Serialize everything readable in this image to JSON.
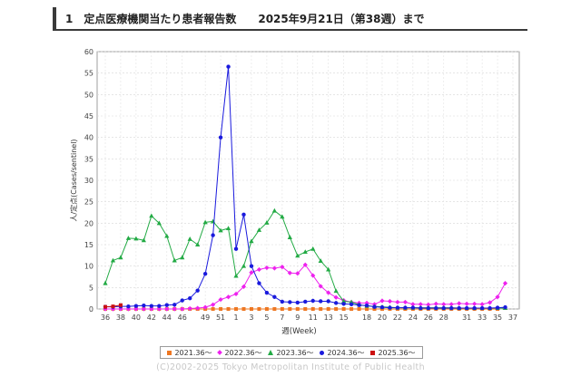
{
  "header": {
    "text": "1　定点医療機関当たり患者報告数　　2025年9月21日（第38週）まで"
  },
  "copyright": "(C)2002-2025 Tokyo Metropolitan Institute of Public Health",
  "chart_data": {
    "type": "line",
    "title": "",
    "xlabel": "週(Week)",
    "ylabel": "人/定点(Cases/sentinel)",
    "ylim": [
      0,
      60
    ],
    "yticks": [
      0,
      5,
      10,
      15,
      20,
      25,
      30,
      35,
      40,
      45,
      50,
      55,
      60
    ],
    "grid": true,
    "legend_position": "bottom",
    "x_tick_labels": [
      "36",
      "38",
      "40",
      "42",
      "44",
      "46",
      "49",
      "51",
      "1",
      "3",
      "5",
      "7",
      "9",
      "11",
      "13",
      "15",
      "18",
      "20",
      "22",
      "24",
      "26",
      "28",
      "31",
      "33",
      "35",
      "37"
    ],
    "weeks": [
      36,
      37,
      38,
      39,
      40,
      41,
      42,
      43,
      44,
      45,
      46,
      47,
      48,
      49,
      50,
      51,
      52,
      1,
      2,
      3,
      4,
      5,
      6,
      7,
      8,
      9,
      10,
      11,
      12,
      13,
      14,
      15,
      16,
      17,
      18,
      19,
      20,
      21,
      22,
      23,
      24,
      25,
      26,
      27,
      28,
      29,
      30,
      31,
      32,
      33,
      34,
      35,
      36,
      37
    ],
    "series": [
      {
        "name": "2021.36～",
        "color": "#ee7722",
        "marker": "square",
        "values": [
          0,
          0,
          0,
          0,
          0,
          0,
          0,
          0,
          0,
          0,
          0,
          0,
          0,
          0,
          0,
          0,
          0,
          0,
          0,
          0,
          0,
          0,
          0,
          0,
          0,
          0,
          0,
          0,
          0,
          0,
          0,
          0,
          0,
          0,
          0,
          0,
          0,
          0,
          0,
          0,
          0,
          0,
          0,
          0,
          0,
          0,
          0,
          0,
          0,
          0,
          0,
          0,
          null,
          null
        ]
      },
      {
        "name": "2022.36～",
        "color": "#ee22ee",
        "marker": "diamond",
        "values": [
          0,
          0,
          0,
          0,
          0,
          0,
          0,
          0,
          0,
          0,
          0,
          0.1,
          0.2,
          0.4,
          1,
          2.2,
          2.8,
          3.5,
          5.2,
          8.5,
          9.2,
          9.6,
          9.5,
          9.8,
          8.4,
          8.3,
          10.3,
          7.8,
          5.3,
          3.8,
          2.7,
          2,
          1.6,
          1.4,
          1.4,
          1.1,
          1.9,
          1.8,
          1.6,
          1.6,
          1.1,
          1.1,
          1,
          1.2,
          1.1,
          1.1,
          1.3,
          1.2,
          1.2,
          1.1,
          1.5,
          2.8,
          6,
          null
        ]
      },
      {
        "name": "2023.36～",
        "color": "#22aa44",
        "marker": "triangle",
        "values": [
          6,
          11.3,
          12,
          16.5,
          16.4,
          16,
          21.7,
          20,
          17,
          11.3,
          12,
          16.3,
          15,
          20.2,
          20.4,
          18.3,
          18.8,
          7.7,
          10,
          15.8,
          18.4,
          20.1,
          22.9,
          21.5,
          16.7,
          12.4,
          13.3,
          14,
          11.2,
          9.2,
          4.2,
          1.8,
          1.6,
          1,
          0.7,
          0.6,
          0.5,
          0.4,
          0.3,
          0.3,
          0.3,
          0.3,
          0.3,
          0.3,
          0.3,
          0.3,
          0.2,
          0.2,
          0.2,
          0.2,
          0.2,
          0.2,
          0.2,
          null
        ]
      },
      {
        "name": "2024.36～",
        "color": "#1a1add",
        "marker": "circle",
        "values": [
          0.5,
          0.5,
          0.6,
          0.6,
          0.7,
          0.8,
          0.7,
          0.7,
          0.9,
          1,
          2,
          2.5,
          4.3,
          8.2,
          17.2,
          40,
          56.5,
          14,
          22,
          10,
          6,
          3.8,
          2.8,
          1.7,
          1.6,
          1.5,
          1.7,
          1.9,
          1.8,
          1.8,
          1.4,
          1.2,
          1.1,
          0.9,
          0.8,
          0.5,
          0.4,
          0.3,
          0.3,
          0.3,
          0.3,
          0.2,
          0.2,
          0.2,
          0.2,
          0.2,
          0.2,
          0.2,
          0.2,
          0.2,
          0.2,
          0.3,
          0.4,
          null
        ]
      },
      {
        "name": "2025.36～",
        "color": "#cc1111",
        "marker": "square",
        "values": [
          0.5,
          0.6,
          0.9,
          null,
          null,
          null,
          null,
          null,
          null,
          null,
          null,
          null,
          null,
          null,
          null,
          null,
          null,
          null,
          null,
          null,
          null,
          null,
          null,
          null,
          null,
          null,
          null,
          null,
          null,
          null,
          null,
          null,
          null,
          null,
          null,
          null,
          null,
          null,
          null,
          null,
          null,
          null,
          null,
          null,
          null,
          null,
          null,
          null,
          null,
          null,
          null,
          null,
          null,
          null
        ]
      }
    ]
  }
}
